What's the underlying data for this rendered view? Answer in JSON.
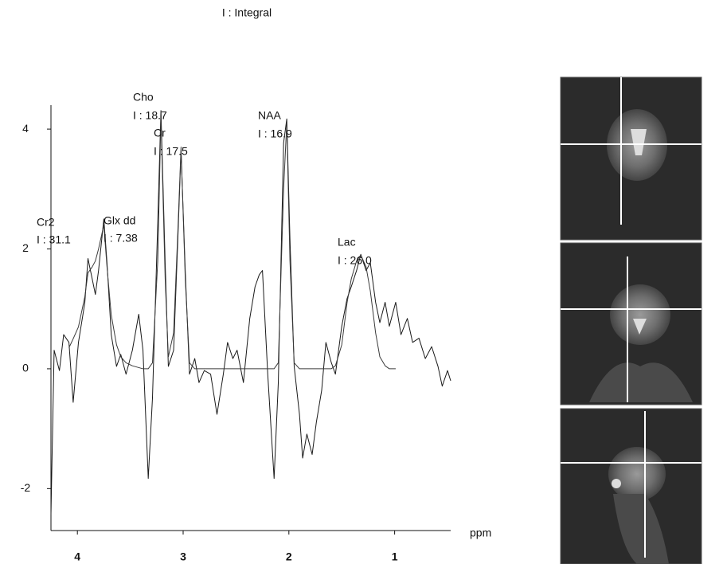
{
  "chart_data": {
    "type": "line",
    "title": "I : Integral",
    "x_label": "ppm",
    "x": [
      4.25,
      4.22,
      4.17,
      4.13,
      4.08,
      4.04,
      3.99,
      3.93,
      3.9,
      3.86,
      3.83,
      3.8,
      3.75,
      3.72,
      3.68,
      3.63,
      3.59,
      3.54,
      3.48,
      3.42,
      3.38,
      3.33,
      3.29,
      3.24,
      3.21,
      3.17,
      3.14,
      3.09,
      3.05,
      3.02,
      2.98,
      2.94,
      2.89,
      2.85,
      2.8,
      2.74,
      2.68,
      2.62,
      2.58,
      2.53,
      2.49,
      2.43,
      2.37,
      2.32,
      2.28,
      2.25,
      2.2,
      2.14,
      2.1,
      2.05,
      2.02,
      1.99,
      1.95,
      1.9,
      1.87,
      1.83,
      1.78,
      1.74,
      1.69,
      1.65,
      1.6,
      1.56,
      1.5,
      1.45,
      1.41,
      1.36,
      1.32,
      1.27,
      1.23,
      1.18,
      1.14,
      1.09,
      1.05,
      0.99,
      0.94,
      0.88,
      0.83,
      0.77,
      0.71,
      0.65,
      0.59,
      0.55,
      0.5,
      0.47
    ],
    "series": [
      {
        "color": "#1a1a1a",
        "values": [
          -2.43,
          0.31,
          -0.03,
          0.57,
          0.44,
          -0.56,
          0.44,
          1.1,
          1.84,
          1.5,
          1.24,
          1.64,
          2.5,
          1.77,
          0.57,
          0.04,
          0.24,
          -0.09,
          0.31,
          0.91,
          0.31,
          -1.83,
          -0.49,
          2.44,
          4.31,
          1.77,
          0.04,
          0.31,
          2.17,
          3.64,
          1.64,
          -0.09,
          0.17,
          -0.23,
          -0.03,
          -0.09,
          -0.76,
          -0.09,
          0.44,
          0.17,
          0.31,
          -0.23,
          0.84,
          1.37,
          1.57,
          1.64,
          -0.09,
          -1.83,
          -0.23,
          3.77,
          4.17,
          2.17,
          0.04,
          -0.76,
          -1.49,
          -1.09,
          -1.43,
          -0.89,
          -0.36,
          0.44,
          0.11,
          -0.09,
          0.71,
          1.17,
          1.37,
          1.64,
          1.91,
          1.64,
          1.77,
          1.11,
          0.77,
          1.11,
          0.71,
          1.11,
          0.57,
          0.84,
          0.44,
          0.51,
          0.17,
          0.37,
          0.04,
          -0.29,
          -0.03,
          -0.2
        ]
      },
      {
        "color": "#3a3a3a",
        "values": [
          null,
          null,
          null,
          null,
          0.35,
          0.5,
          0.7,
          1.2,
          1.6,
          1.7,
          1.8,
          2.0,
          2.4,
          1.7,
          0.9,
          0.4,
          0.2,
          0.1,
          0.05,
          0.02,
          0,
          0,
          0.1,
          1.8,
          4.2,
          1.5,
          0.2,
          0.6,
          2.3,
          3.7,
          1.5,
          0.1,
          0,
          0,
          0,
          0,
          0,
          0,
          0,
          0,
          0,
          0,
          0,
          0,
          0,
          0,
          0,
          0,
          0.1,
          3.0,
          4.1,
          1.8,
          0.1,
          0,
          0,
          0,
          0,
          0,
          0,
          0,
          0,
          0.05,
          0.4,
          1.1,
          1.5,
          1.8,
          1.9,
          1.7,
          1.3,
          0.6,
          0.2,
          0.05,
          0,
          0,
          null,
          null,
          null,
          null,
          null,
          null,
          null,
          null,
          null,
          null
        ]
      }
    ],
    "xlim": [
      4.25,
      0.47
    ],
    "xticks": [
      4,
      3,
      2,
      1
    ],
    "ylim": [
      -2.7,
      4.4
    ],
    "yticks": [
      -2,
      0,
      2,
      4
    ],
    "annotations": [
      "Cho",
      "I : 18.7",
      "Cr",
      "I : 17.5",
      "NAA",
      "I : 16.9",
      "Cr2",
      "I : 31.1",
      "Glx dd",
      "I : 7.38",
      "Lac",
      "I : 26.0"
    ]
  }
}
